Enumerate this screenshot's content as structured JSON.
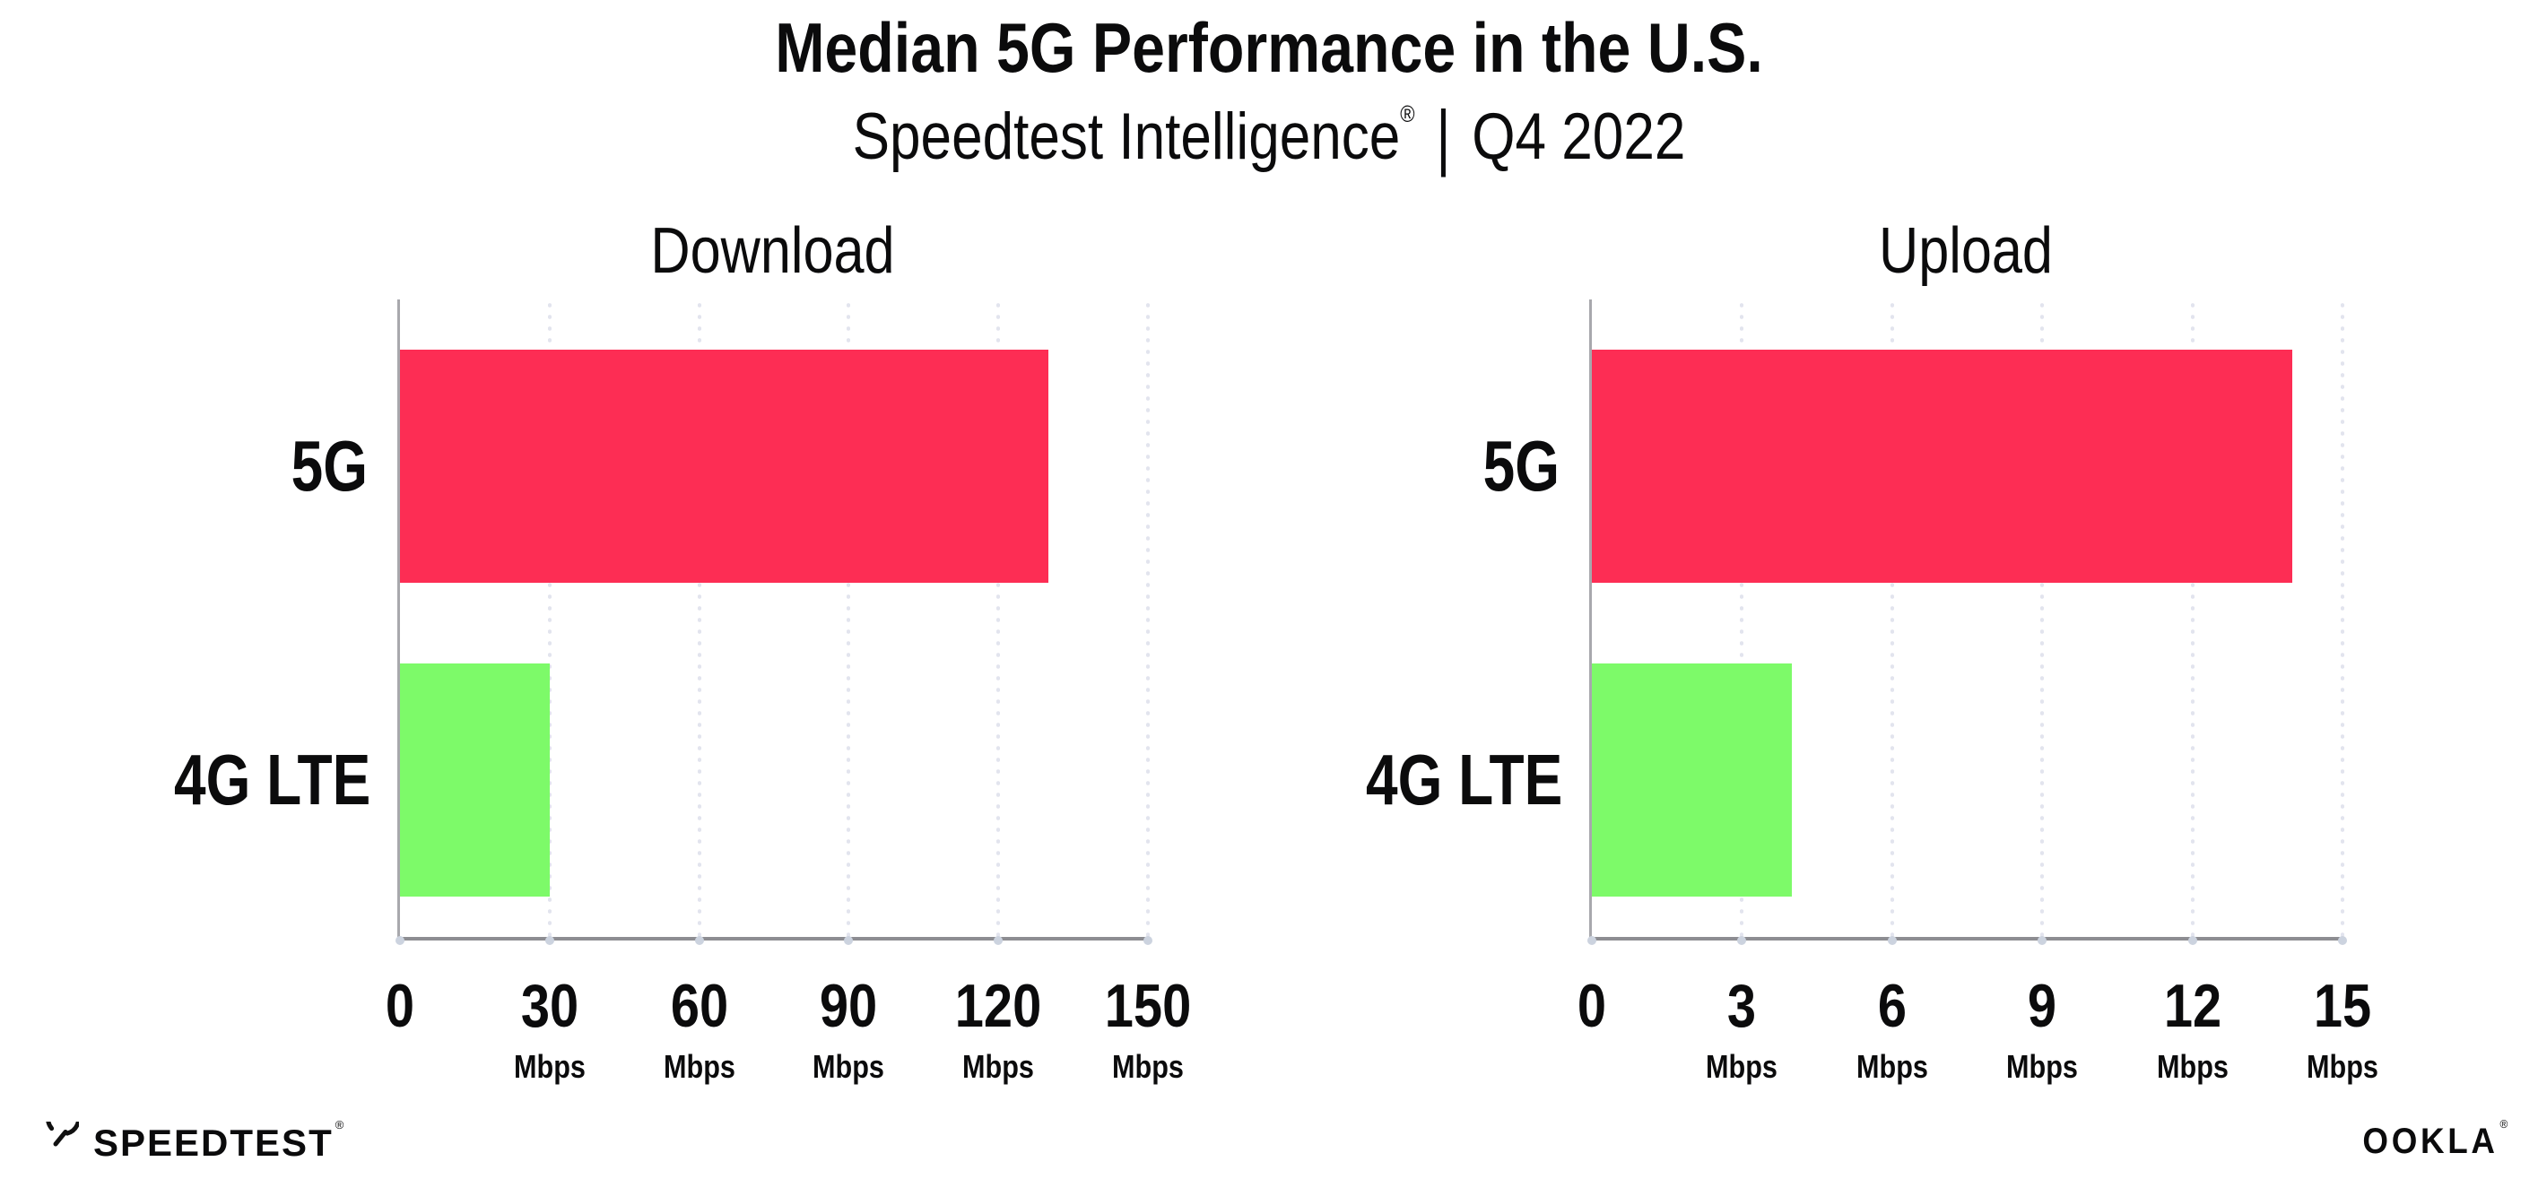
{
  "header": {
    "title": "Median 5G Performance in the U.S.",
    "subtitle": {
      "brand": "Speedtest Intelligence",
      "registered_mark": "®",
      "separator": "|",
      "period": "Q4 2022"
    }
  },
  "chart_data": [
    {
      "type": "bar",
      "orientation": "horizontal",
      "title": "Download",
      "categories": [
        "5G",
        "4G LTE"
      ],
      "values": [
        130,
        30
      ],
      "unit": "Mbps",
      "xlim": [
        0,
        150
      ],
      "xticks": [
        0,
        30,
        60,
        90,
        120,
        150
      ],
      "series_colors": [
        "#FD2D54",
        "#7DFA69"
      ],
      "grid": "vertical-dotted",
      "legend": "none"
    },
    {
      "type": "bar",
      "orientation": "horizontal",
      "title": "Upload",
      "categories": [
        "5G",
        "4G LTE"
      ],
      "values": [
        14,
        4
      ],
      "unit": "Mbps",
      "xlim": [
        0,
        15
      ],
      "xticks": [
        0,
        3,
        6,
        9,
        12,
        15
      ],
      "series_colors": [
        "#FD2D54",
        "#7DFA69"
      ],
      "grid": "vertical-dotted",
      "legend": "none"
    }
  ],
  "colors": {
    "background": "#ffffff",
    "text": "#0b0b0c",
    "bar_5g": "#FD2D54",
    "bar_4g_lte": "#7DFA69",
    "grid": "#e2e4ee",
    "axis_x": "#8d8d92",
    "axis_y": "#a8a8ad",
    "tick_dot": "#ccd3df"
  },
  "footer": {
    "speedtest": {
      "icon": "speedtest-gauge-icon",
      "label": "SPEEDTEST",
      "mark": "®"
    },
    "ookla": {
      "label": "OOKLA",
      "mark": "®"
    }
  }
}
